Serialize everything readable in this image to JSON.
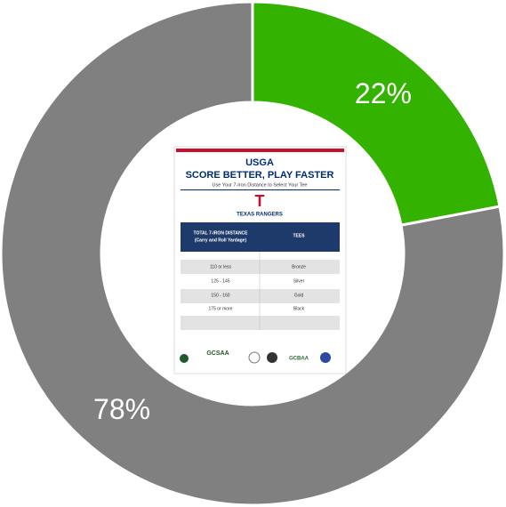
{
  "chart_data": {
    "type": "donut",
    "categories": [
      null,
      null
    ],
    "values": [
      22,
      78
    ],
    "value_labels": [
      "22%",
      "78%"
    ],
    "colors": [
      "#33b300",
      "#808080"
    ]
  },
  "poster": {
    "brand": "USGA",
    "title": "SCORE BETTER, PLAY FASTER",
    "subtitle": "Use Your 7-Iron Distance to Select Your Tee",
    "club": "TEXAS RANGERS",
    "table": {
      "header": [
        "TOTAL 7-IRON DISTANCE",
        "(Carry and Roll Yardage)",
        "TEES"
      ],
      "rows": [
        [
          "110 or less",
          "Bronze"
        ],
        [
          "125 - 145",
          "Silver"
        ],
        [
          "150 - 160",
          "Gold"
        ],
        [
          "175 or more",
          "Black"
        ]
      ]
    },
    "logos": [
      "GCSAA",
      "GCBAA"
    ]
  }
}
